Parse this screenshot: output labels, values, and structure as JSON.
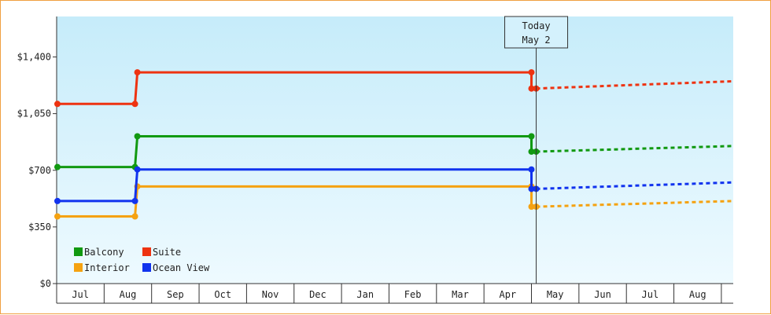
{
  "chart_data": {
    "type": "line",
    "subtype": "step",
    "x_labels": [
      "Jul",
      "Aug",
      "Sep",
      "Oct",
      "Nov",
      "Dec",
      "Jan",
      "Feb",
      "Mar",
      "Apr",
      "May",
      "Jun",
      "Jul",
      "Aug"
    ],
    "y_ticks": [
      "$0",
      "$350",
      "$700",
      "$1,050",
      "$1,400"
    ],
    "y_tick_values": [
      0,
      350,
      700,
      1050,
      1400
    ],
    "ylim": [
      0,
      1650
    ],
    "x_range": [
      -0.5,
      13.75
    ],
    "today_marker": {
      "line1": "Today",
      "line2": "May 2",
      "x": 9.6
    },
    "grid": false,
    "legend_position": "bottom-left",
    "series": [
      {
        "name": "Balcony",
        "color": "#119911",
        "points": [
          [
            -0.5,
            720
          ],
          [
            1.15,
            720
          ],
          [
            1.2,
            910
          ],
          [
            9.5,
            910
          ],
          [
            9.5,
            815
          ],
          [
            9.6,
            815
          ]
        ],
        "forecast": [
          [
            9.6,
            815
          ],
          [
            13.75,
            850
          ]
        ]
      },
      {
        "name": "Suite",
        "color": "#ee3311",
        "points": [
          [
            -0.5,
            1110
          ],
          [
            1.15,
            1110
          ],
          [
            1.2,
            1305
          ],
          [
            9.5,
            1305
          ],
          [
            9.5,
            1205
          ],
          [
            9.6,
            1205
          ]
        ],
        "forecast": [
          [
            9.6,
            1205
          ],
          [
            13.75,
            1250
          ]
        ]
      },
      {
        "name": "Interior",
        "color": "#f5a211",
        "points": [
          [
            -0.5,
            415
          ],
          [
            1.15,
            415
          ],
          [
            1.2,
            600
          ],
          [
            9.5,
            600
          ],
          [
            9.5,
            475
          ],
          [
            9.6,
            475
          ]
        ],
        "forecast": [
          [
            9.6,
            475
          ],
          [
            13.75,
            510
          ]
        ]
      },
      {
        "name": "Ocean View",
        "color": "#1133ee",
        "points": [
          [
            -0.5,
            510
          ],
          [
            1.15,
            510
          ],
          [
            1.2,
            705
          ],
          [
            9.5,
            705
          ],
          [
            9.5,
            585
          ],
          [
            9.6,
            585
          ]
        ],
        "forecast": [
          [
            9.6,
            585
          ],
          [
            13.75,
            625
          ]
        ]
      }
    ]
  }
}
